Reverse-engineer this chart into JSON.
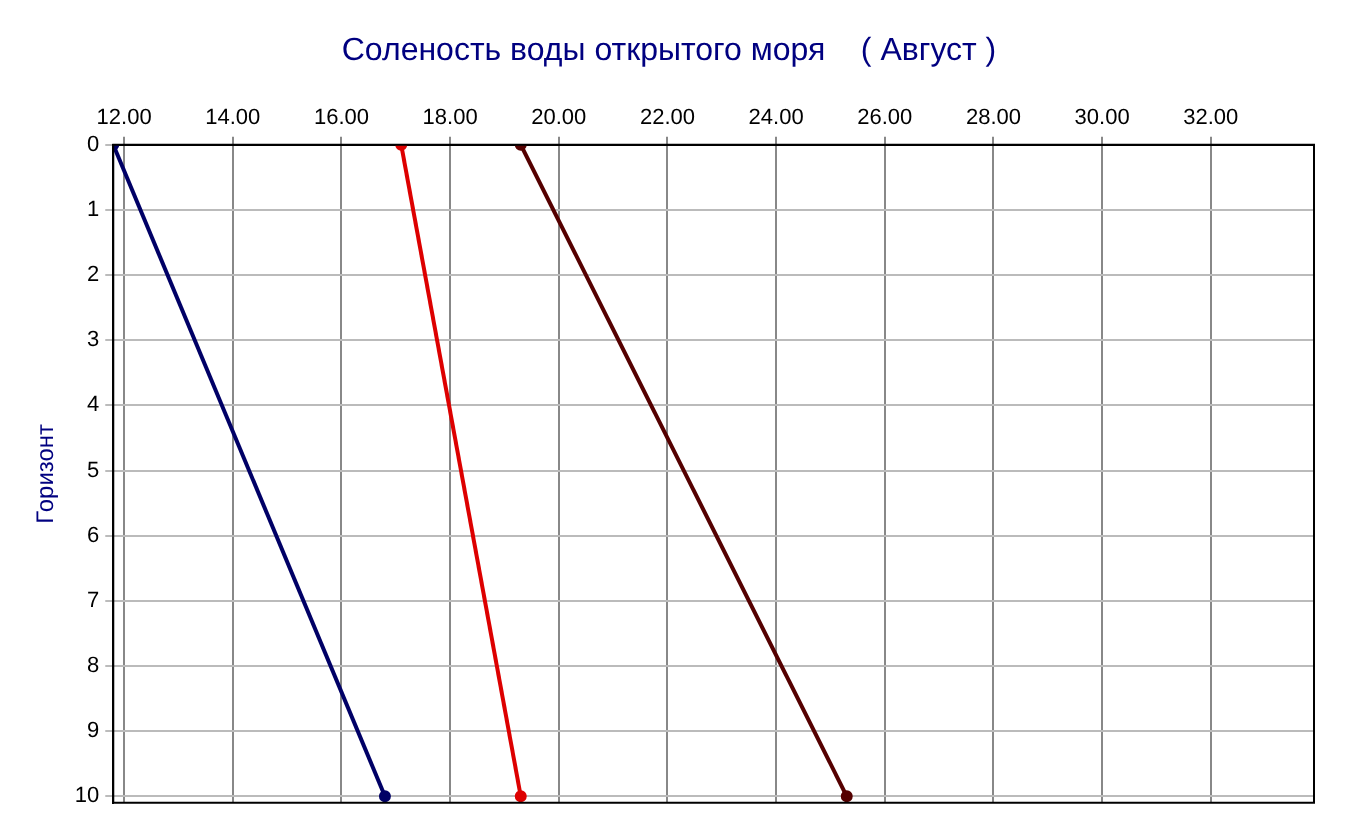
{
  "chart_data": {
    "type": "line",
    "title": "Соленость воды открытого моря    ( Август )",
    "ylabel": "Горизонт",
    "xlim": [
      11.8,
      33.9
    ],
    "xticks": [
      {
        "value": 12,
        "label": "12.00"
      },
      {
        "value": 14,
        "label": "14.00"
      },
      {
        "value": 16,
        "label": "16.00"
      },
      {
        "value": 18,
        "label": "18.00"
      },
      {
        "value": 20,
        "label": "20.00"
      },
      {
        "value": 22,
        "label": "22.00"
      },
      {
        "value": 24,
        "label": "24.00"
      },
      {
        "value": 26,
        "label": "26.00"
      },
      {
        "value": 28,
        "label": "28.00"
      },
      {
        "value": 30,
        "label": "30.00"
      },
      {
        "value": 32,
        "label": "32.00"
      }
    ],
    "ylim": [
      10.1,
      0
    ],
    "yticks": [
      0,
      1,
      2,
      3,
      4,
      5,
      6,
      7,
      8,
      9,
      10
    ],
    "grid": true,
    "legend": false,
    "marker": "circle",
    "line_style": "solid",
    "series": [
      {
        "color": "#000066",
        "x": [
          11.8,
          16.8
        ],
        "values": [
          0,
          10
        ]
      },
      {
        "color": "#dd0000",
        "x": [
          17.1,
          19.3
        ],
        "values": [
          0,
          10
        ]
      },
      {
        "color": "#550000",
        "x": [
          19.3,
          25.3
        ],
        "values": [
          0,
          10
        ]
      }
    ]
  }
}
